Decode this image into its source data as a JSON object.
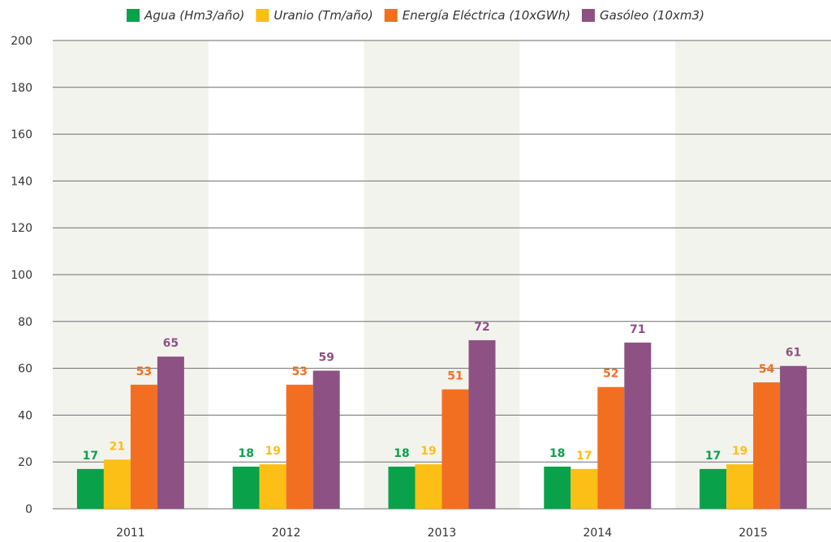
{
  "chart_data": {
    "type": "bar",
    "title": "",
    "xlabel": "",
    "ylabel": "",
    "categories": [
      "2011",
      "2012",
      "2013",
      "2014",
      "2015"
    ],
    "ylim": [
      0,
      200
    ],
    "yticks": [
      0,
      20,
      40,
      60,
      80,
      100,
      120,
      140,
      160,
      180,
      200
    ],
    "grid": true,
    "legend_position": "top",
    "series": [
      {
        "name": "Agua (Hm3/año)",
        "color": "#0aa14b",
        "values": [
          17,
          18,
          18,
          18,
          17
        ]
      },
      {
        "name": "Uranio (Tm/año)",
        "color": "#fcbf16",
        "values": [
          21,
          19,
          19,
          17,
          19
        ]
      },
      {
        "name": "Energía Eléctrica (10xGWh)",
        "color": "#f26f22",
        "values": [
          53,
          53,
          51,
          52,
          54
        ]
      },
      {
        "name": "Gasóleo (10xm3)",
        "color": "#8d5283",
        "values": [
          65,
          59,
          72,
          71,
          61
        ]
      }
    ],
    "band_color": "#f3f3ee"
  }
}
